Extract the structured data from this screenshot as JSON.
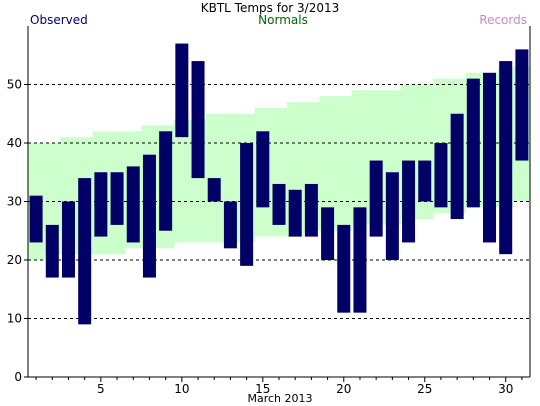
{
  "chart_data": {
    "type": "bar",
    "title": "KBTL Temps for 3/2013",
    "xlabel": "March 2013",
    "ylabel": "",
    "legend": [
      {
        "name": "Observed",
        "color": "#000066"
      },
      {
        "name": "Normals",
        "color": "#006600"
      },
      {
        "name": "Records",
        "color": "#cc88cc"
      }
    ],
    "x_ticks": [
      5,
      10,
      15,
      20,
      25,
      30
    ],
    "y_ticks": [
      0,
      10,
      20,
      30,
      40,
      50
    ],
    "xlim": [
      0.5,
      31.5
    ],
    "ylim": [
      0,
      60
    ],
    "grid_y": [
      10,
      20,
      30,
      40,
      50
    ],
    "colors": {
      "observed": "#000066",
      "normals": "#ccffcc",
      "grid": "#000000"
    },
    "days": [
      1,
      2,
      3,
      4,
      5,
      6,
      7,
      8,
      9,
      10,
      11,
      12,
      13,
      14,
      15,
      16,
      17,
      18,
      19,
      20,
      21,
      22,
      23,
      24,
      25,
      26,
      27,
      28,
      29,
      30,
      31
    ],
    "observed_high": [
      31,
      26,
      30,
      34,
      35,
      35,
      36,
      38,
      42,
      57,
      54,
      34,
      30,
      40,
      42,
      33,
      32,
      33,
      29,
      26,
      29,
      37,
      35,
      37,
      37,
      40,
      45,
      51,
      52,
      54,
      56
    ],
    "observed_low": [
      23,
      17,
      17,
      9,
      24,
      26,
      23,
      17,
      25,
      41,
      34,
      30,
      22,
      19,
      29,
      26,
      24,
      24,
      20,
      11,
      11,
      24,
      20,
      23,
      30,
      29,
      27,
      29,
      23,
      21,
      37
    ],
    "normal_high": [
      40,
      40,
      41,
      41,
      42,
      42,
      42,
      43,
      43,
      44,
      44,
      45,
      45,
      45,
      46,
      46,
      47,
      47,
      48,
      48,
      49,
      49,
      49,
      50,
      50,
      51,
      51,
      52,
      52,
      53,
      53
    ],
    "normal_low": [
      20,
      21,
      21,
      21,
      21,
      21,
      22,
      22,
      22,
      23,
      23,
      23,
      23,
      23,
      24,
      24,
      24,
      25,
      25,
      25,
      26,
      26,
      26,
      27,
      27,
      28,
      28,
      29,
      29,
      29,
      30
    ]
  }
}
